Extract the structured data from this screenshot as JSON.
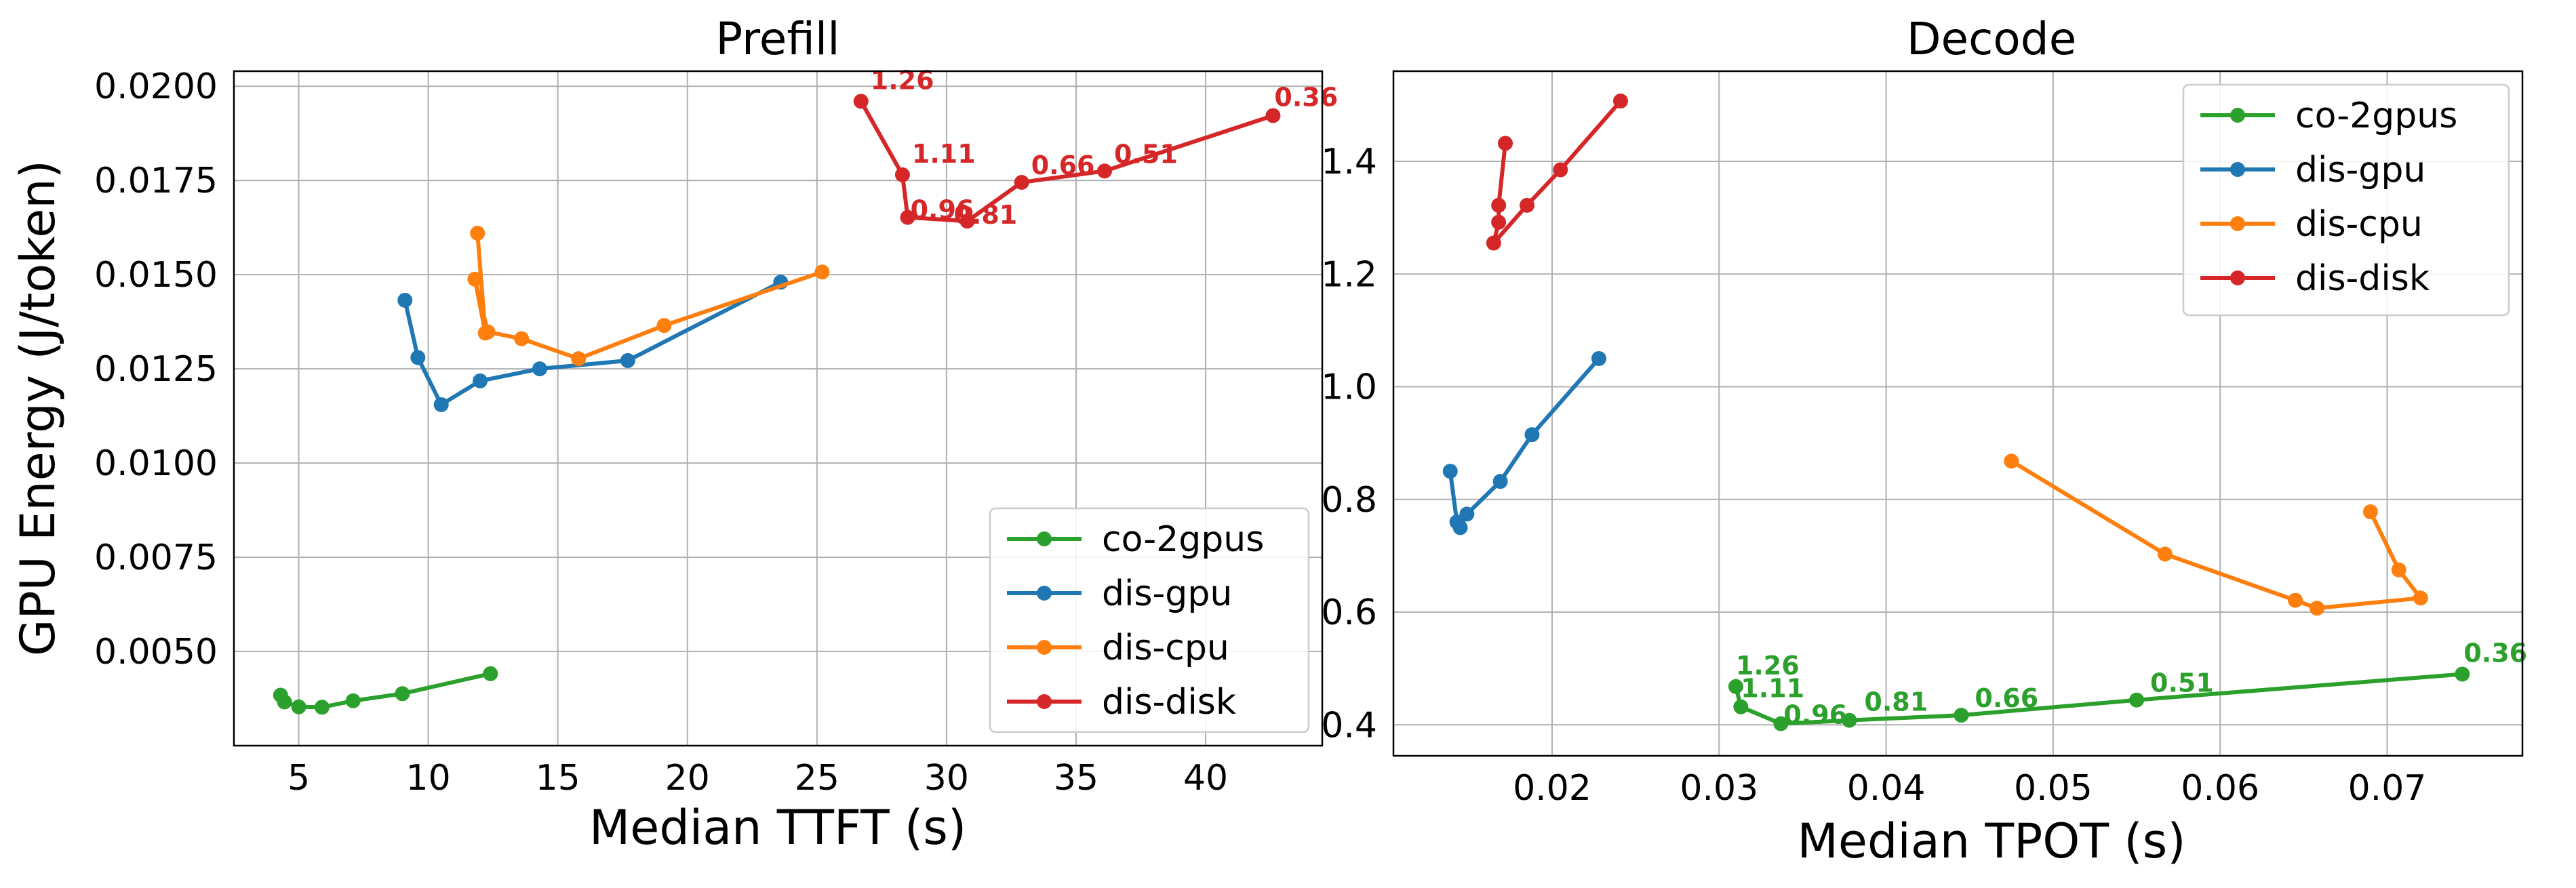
{
  "colors": {
    "co-2gpus": "#2ca02c",
    "dis-gpu": "#1f77b4",
    "dis-cpu": "#ff7f0e",
    "dis-disk": "#d62728"
  },
  "chart_data": [
    {
      "type": "line",
      "title": "Prefill",
      "xlabel": "Median TTFT (s)",
      "ylabel": "GPU Energy (J/token)",
      "xlim": [
        2.5,
        44.5
      ],
      "ylim": [
        0.0025,
        0.0204
      ],
      "xticks": [
        5,
        10,
        15,
        20,
        25,
        30,
        35,
        40
      ],
      "yticks": [
        0.005,
        0.0075,
        0.01,
        0.0125,
        0.015,
        0.0175,
        0.02
      ],
      "xtick_labels": [
        "5",
        "10",
        "15",
        "20",
        "25",
        "30",
        "35",
        "40"
      ],
      "ytick_labels": [
        "0.0050",
        "0.0075",
        "0.0100",
        "0.0125",
        "0.0150",
        "0.0175",
        "0.0200"
      ],
      "grid": true,
      "legend_position": "lower-right",
      "series": [
        {
          "name": "co-2gpus",
          "x": [
            4.3,
            4.45,
            5.0,
            5.9,
            7.1,
            9.0,
            12.4
          ],
          "y": [
            0.00384,
            0.00366,
            0.00353,
            0.00352,
            0.00369,
            0.00388,
            0.00441
          ]
        },
        {
          "name": "dis-gpu",
          "x": [
            9.1,
            9.6,
            10.5,
            12.0,
            14.3,
            17.7,
            23.6
          ],
          "y": [
            0.01432,
            0.0128,
            0.01155,
            0.01218,
            0.0125,
            0.01272,
            0.0148
          ]
        },
        {
          "name": "dis-cpu",
          "x": [
            11.9,
            12.2,
            11.8,
            12.3,
            13.6,
            15.8,
            19.1,
            25.2
          ],
          "y": [
            0.0161,
            0.01345,
            0.01488,
            0.01348,
            0.0133,
            0.01277,
            0.01365,
            0.01507
          ]
        },
        {
          "name": "dis-disk",
          "x": [
            26.7,
            28.3,
            28.5,
            30.8,
            32.9,
            36.1,
            42.6
          ],
          "y": [
            0.0196,
            0.01765,
            0.01652,
            0.01642,
            0.01745,
            0.01775,
            0.01922
          ]
        }
      ],
      "annotations": {
        "series": "dis-disk",
        "labels": [
          "1.26",
          "1.11",
          "0.96",
          "0.81",
          "0.66",
          "0.51",
          "0.36"
        ]
      }
    },
    {
      "type": "line",
      "title": "Decode",
      "xlabel": "Median TPOT (s)",
      "ylabel": "",
      "xlim": [
        0.0105,
        0.0781
      ],
      "ylim": [
        0.345,
        1.56
      ],
      "xticks": [
        0.02,
        0.03,
        0.04,
        0.05,
        0.06,
        0.07
      ],
      "yticks": [
        0.4,
        0.6,
        0.8,
        1.0,
        1.2,
        1.4
      ],
      "xtick_labels": [
        "0.02",
        "0.03",
        "0.04",
        "0.05",
        "0.06",
        "0.07"
      ],
      "ytick_labels": [
        "0.4",
        "0.6",
        "0.8",
        "1.0",
        "1.2",
        "1.4"
      ],
      "grid": true,
      "legend_position": "upper-right",
      "series": [
        {
          "name": "co-2gpus",
          "x": [
            0.031,
            0.0313,
            0.0337,
            0.0378,
            0.0445,
            0.055,
            0.0745
          ],
          "y": [
            0.468,
            0.432,
            0.402,
            0.408,
            0.417,
            0.444,
            0.49
          ]
        },
        {
          "name": "dis-gpu",
          "x": [
            0.0139,
            0.0143,
            0.0145,
            0.0149,
            0.0169,
            0.0188,
            0.0228
          ],
          "y": [
            0.85,
            0.76,
            0.75,
            0.774,
            0.832,
            0.915,
            1.05
          ]
        },
        {
          "name": "dis-cpu",
          "x": [
            0.0475,
            0.0567,
            0.0645,
            0.0658,
            0.072,
            0.0707,
            0.069
          ],
          "y": [
            0.868,
            0.703,
            0.621,
            0.607,
            0.625,
            0.675,
            0.778
          ]
        },
        {
          "name": "dis-disk",
          "x": [
            0.0172,
            0.0168,
            0.0168,
            0.0165,
            0.0185,
            0.0205,
            0.0241
          ],
          "y": [
            1.432,
            1.322,
            1.292,
            1.255,
            1.322,
            1.385,
            1.507
          ]
        }
      ],
      "annotations": {
        "series": "co-2gpus",
        "labels": [
          "1.26",
          "1.11",
          "0.96",
          "0.81",
          "0.66",
          "0.51",
          "0.36"
        ]
      }
    }
  ]
}
